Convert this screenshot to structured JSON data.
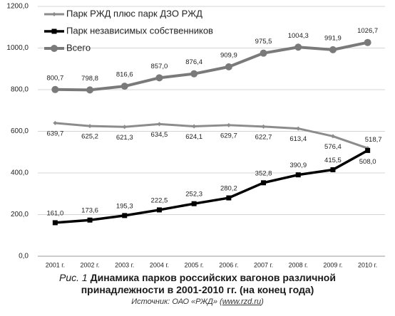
{
  "chart_data": {
    "type": "line",
    "categories": [
      "2001 г.",
      "2002 г.",
      "2003 г.",
      "2004 г.",
      "2005 г.",
      "2006 г.",
      "2007 г.",
      "2008 г.",
      "2009 г.",
      "2010 г."
    ],
    "ylim": [
      0,
      1200
    ],
    "yticks": [
      {
        "value": 0,
        "label": "0,0"
      },
      {
        "value": 200,
        "label": "200,0"
      },
      {
        "value": 400,
        "label": "400,0"
      },
      {
        "value": 600,
        "label": "600,0"
      },
      {
        "value": 800,
        "label": "800,0"
      },
      {
        "value": 1000,
        "label": "1000,0"
      },
      {
        "value": 1200,
        "label": "1200,0"
      }
    ],
    "grid": true,
    "legend": "top-left",
    "series": [
      {
        "name": "Парк РЖД плюс парк ДЗО РЖД",
        "color": "#8c8c8c",
        "values": [
          639.7,
          625.2,
          621.3,
          634.5,
          624.1,
          629.7,
          622.7,
          613.4,
          576.4,
          518.7
        ],
        "value_labels": [
          "639,7",
          "625,2",
          "621,3",
          "634,5",
          "624,1",
          "629,7",
          "622,7",
          "613,4",
          "576,4",
          "518,7"
        ]
      },
      {
        "name": "Парк независимых собственников",
        "color": "#000000",
        "values": [
          161.0,
          173.6,
          195.3,
          222.5,
          252.3,
          280.2,
          352.8,
          390.9,
          415.5,
          508.0
        ],
        "value_labels": [
          "161,0",
          "173,6",
          "195,3",
          "222,5",
          "252,3",
          "280,2",
          "352,8",
          "390,9",
          "415,5",
          "508,0"
        ]
      },
      {
        "name": "Всего",
        "color": "#7a7a7a",
        "values": [
          800.7,
          798.8,
          816.6,
          857.0,
          876.4,
          909.9,
          975.5,
          1004.3,
          991.9,
          1026.7
        ],
        "value_labels": [
          "800,7",
          "798,8",
          "816,6",
          "857,0",
          "876,4",
          "909,9",
          "975,5",
          "1004,3",
          "991,9",
          "1026,7"
        ]
      }
    ],
    "caption_prefix": "Рис. 1",
    "title": "Динамика парков российских вагонов различной принадлежности в 2001-2010 гг. (на конец года)",
    "source_prefix": "Источник: ОАО «РЖД» (",
    "source_link": "www.rzd.ru",
    "source_suffix": ")"
  }
}
